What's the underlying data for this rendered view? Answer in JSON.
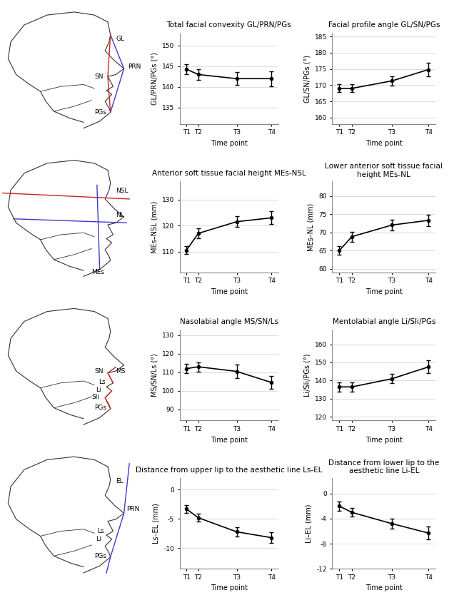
{
  "chart_data": [
    {
      "type": "line",
      "title": "Total facial convexity GL/PRN/PGs",
      "x_label": "Time point",
      "y_label": "GL/PRN/PGs (°)",
      "x": [
        0,
        1.4,
        5.9,
        10
      ],
      "xlim": [
        -0.8,
        10.8
      ],
      "xticks": [
        {
          "value": 0,
          "label": "T1"
        },
        {
          "value": 1.4,
          "label": "T2"
        },
        {
          "value": 5.9,
          "label": "T3"
        },
        {
          "value": 10,
          "label": "T4"
        }
      ],
      "ylim": [
        131,
        153
      ],
      "yticks": [
        135,
        140,
        145,
        150
      ],
      "values": [
        144.3,
        143.0,
        142.0,
        142.0
      ],
      "errors": [
        1.2,
        1.3,
        1.6,
        1.8
      ],
      "color": "#000000",
      "marker": "o",
      "grid": true
    },
    {
      "type": "line",
      "title": "Facial profile angle GL/SN/PGs",
      "x_label": "Time point",
      "y_label": "GL/SN/PGs (°)",
      "x": [
        0,
        1.4,
        5.9,
        10
      ],
      "xlim": [
        -0.8,
        10.8
      ],
      "xticks": [
        {
          "value": 0,
          "label": "T1"
        },
        {
          "value": 1.4,
          "label": "T2"
        },
        {
          "value": 5.9,
          "label": "T3"
        },
        {
          "value": 10,
          "label": "T4"
        }
      ],
      "ylim": [
        158,
        186
      ],
      "yticks": [
        160,
        165,
        170,
        175,
        180,
        185
      ],
      "values": [
        169.0,
        169.0,
        171.3,
        174.8
      ],
      "errors": [
        1.2,
        1.2,
        1.5,
        2.0
      ],
      "color": "#000000",
      "marker": "o",
      "grid": true
    },
    {
      "type": "line",
      "title": "Anterior soft tissue facial height MEs-NSL",
      "x_label": "Time point",
      "y_label": "MEs–NSL (mm)",
      "x": [
        0,
        1.4,
        5.9,
        10
      ],
      "xlim": [
        -0.8,
        10.8
      ],
      "xticks": [
        {
          "value": 0,
          "label": "T1"
        },
        {
          "value": 1.4,
          "label": "T2"
        },
        {
          "value": 5.9,
          "label": "T3"
        },
        {
          "value": 10,
          "label": "T4"
        }
      ],
      "ylim": [
        102,
        137
      ],
      "yticks": [
        110,
        120,
        130
      ],
      "values": [
        110.5,
        117.0,
        121.5,
        123.0
      ],
      "errors": [
        1.5,
        2.0,
        2.0,
        2.5
      ],
      "color": "#000000",
      "marker": "o",
      "grid": true
    },
    {
      "type": "line",
      "title": "Lower anterior soft tissue facial height MEs-NL",
      "x_label": "Time point",
      "y_label": "MEs–NL (mm)",
      "x": [
        0,
        1.4,
        5.9,
        10
      ],
      "xlim": [
        -0.8,
        10.8
      ],
      "xticks": [
        {
          "value": 0,
          "label": "T1"
        },
        {
          "value": 1.4,
          "label": "T2"
        },
        {
          "value": 5.9,
          "label": "T3"
        },
        {
          "value": 10,
          "label": "T4"
        }
      ],
      "ylim": [
        59,
        84
      ],
      "yticks": [
        60,
        65,
        70,
        75,
        80
      ],
      "values": [
        65.0,
        68.8,
        72.0,
        73.3
      ],
      "errors": [
        1.2,
        1.4,
        1.5,
        1.6
      ],
      "color": "#000000",
      "marker": "o",
      "grid": true
    },
    {
      "type": "line",
      "title": "Nasolabial angle MS/SN/Ls",
      "x_label": "Time point",
      "y_label": "MS/SN/Ls (°)",
      "x": [
        0,
        1.4,
        5.9,
        10
      ],
      "xlim": [
        -0.8,
        10.8
      ],
      "xticks": [
        {
          "value": 0,
          "label": "T1"
        },
        {
          "value": 1.4,
          "label": "T2"
        },
        {
          "value": 5.9,
          "label": "T3"
        },
        {
          "value": 10,
          "label": "T4"
        }
      ],
      "ylim": [
        84,
        133
      ],
      "yticks": [
        90,
        100,
        110,
        120,
        130
      ],
      "values": [
        112.0,
        113.0,
        110.5,
        104.5
      ],
      "errors": [
        2.5,
        2.5,
        3.5,
        3.5
      ],
      "color": "#000000",
      "marker": "o",
      "grid": true
    },
    {
      "type": "line",
      "title": "Mentolabial angle Li/Sli/PGs",
      "x_label": "Time point",
      "y_label": "Li/Sli/PGs (°)",
      "x": [
        0,
        1.4,
        5.9,
        10
      ],
      "xlim": [
        -0.8,
        10.8
      ],
      "xticks": [
        {
          "value": 0,
          "label": "T1"
        },
        {
          "value": 1.4,
          "label": "T2"
        },
        {
          "value": 5.9,
          "label": "T3"
        },
        {
          "value": 10,
          "label": "T4"
        }
      ],
      "ylim": [
        118,
        168
      ],
      "yticks": [
        120,
        130,
        140,
        150,
        160
      ],
      "values": [
        136.5,
        136.5,
        141.0,
        147.5
      ],
      "errors": [
        2.5,
        2.5,
        2.5,
        3.5
      ],
      "color": "#000000",
      "marker": "o",
      "grid": true
    },
    {
      "type": "line",
      "title": "Distance from upper lip to the aesthetic line Ls-EL",
      "x_label": "Time point",
      "y_label": "Ls–EL (mm)",
      "x": [
        0,
        1.4,
        5.9,
        10
      ],
      "xlim": [
        -0.8,
        10.8
      ],
      "xticks": [
        {
          "value": 0,
          "label": "T1"
        },
        {
          "value": 1.4,
          "label": "T2"
        },
        {
          "value": 5.9,
          "label": "T3"
        },
        {
          "value": 10,
          "label": "T4"
        }
      ],
      "ylim": [
        -13.5,
        2
      ],
      "yticks": [
        -10,
        -5,
        0
      ],
      "values": [
        -3.3,
        -4.8,
        -7.2,
        -8.2
      ],
      "errors": [
        0.7,
        0.7,
        0.8,
        0.9
      ],
      "color": "#000000",
      "marker": "o",
      "grid": true
    },
    {
      "type": "line",
      "title": "Distance from lower lip to the aesthetic line Li-EL",
      "x_label": "Time point",
      "y_label": "Li–EL (mm)",
      "x": [
        0,
        1.4,
        5.9,
        10
      ],
      "xlim": [
        -0.8,
        10.8
      ],
      "xticks": [
        {
          "value": 0,
          "label": "T1"
        },
        {
          "value": 1.4,
          "label": "T2"
        },
        {
          "value": 5.9,
          "label": "T3"
        },
        {
          "value": 10,
          "label": "T4"
        }
      ],
      "ylim": [
        -12,
        2.5
      ],
      "yticks": [
        -12,
        -8,
        -4,
        0
      ],
      "values": [
        -2.0,
        -3.0,
        -4.8,
        -6.3
      ],
      "errors": [
        0.7,
        0.7,
        0.8,
        1.0
      ],
      "color": "#000000",
      "marker": "o",
      "grid": true
    }
  ],
  "diagrams": [
    {
      "labels": [
        "GL",
        "PRN",
        "SN",
        "PGs"
      ]
    },
    {
      "labels": [
        "NSL",
        "NL",
        "MEs"
      ]
    },
    {
      "labels": [
        "MS",
        "SN",
        "Ls",
        "Li",
        "Sli",
        "PGs"
      ]
    },
    {
      "labels": [
        "EL",
        "PRN",
        "Ls",
        "Li",
        "PGs"
      ]
    }
  ]
}
